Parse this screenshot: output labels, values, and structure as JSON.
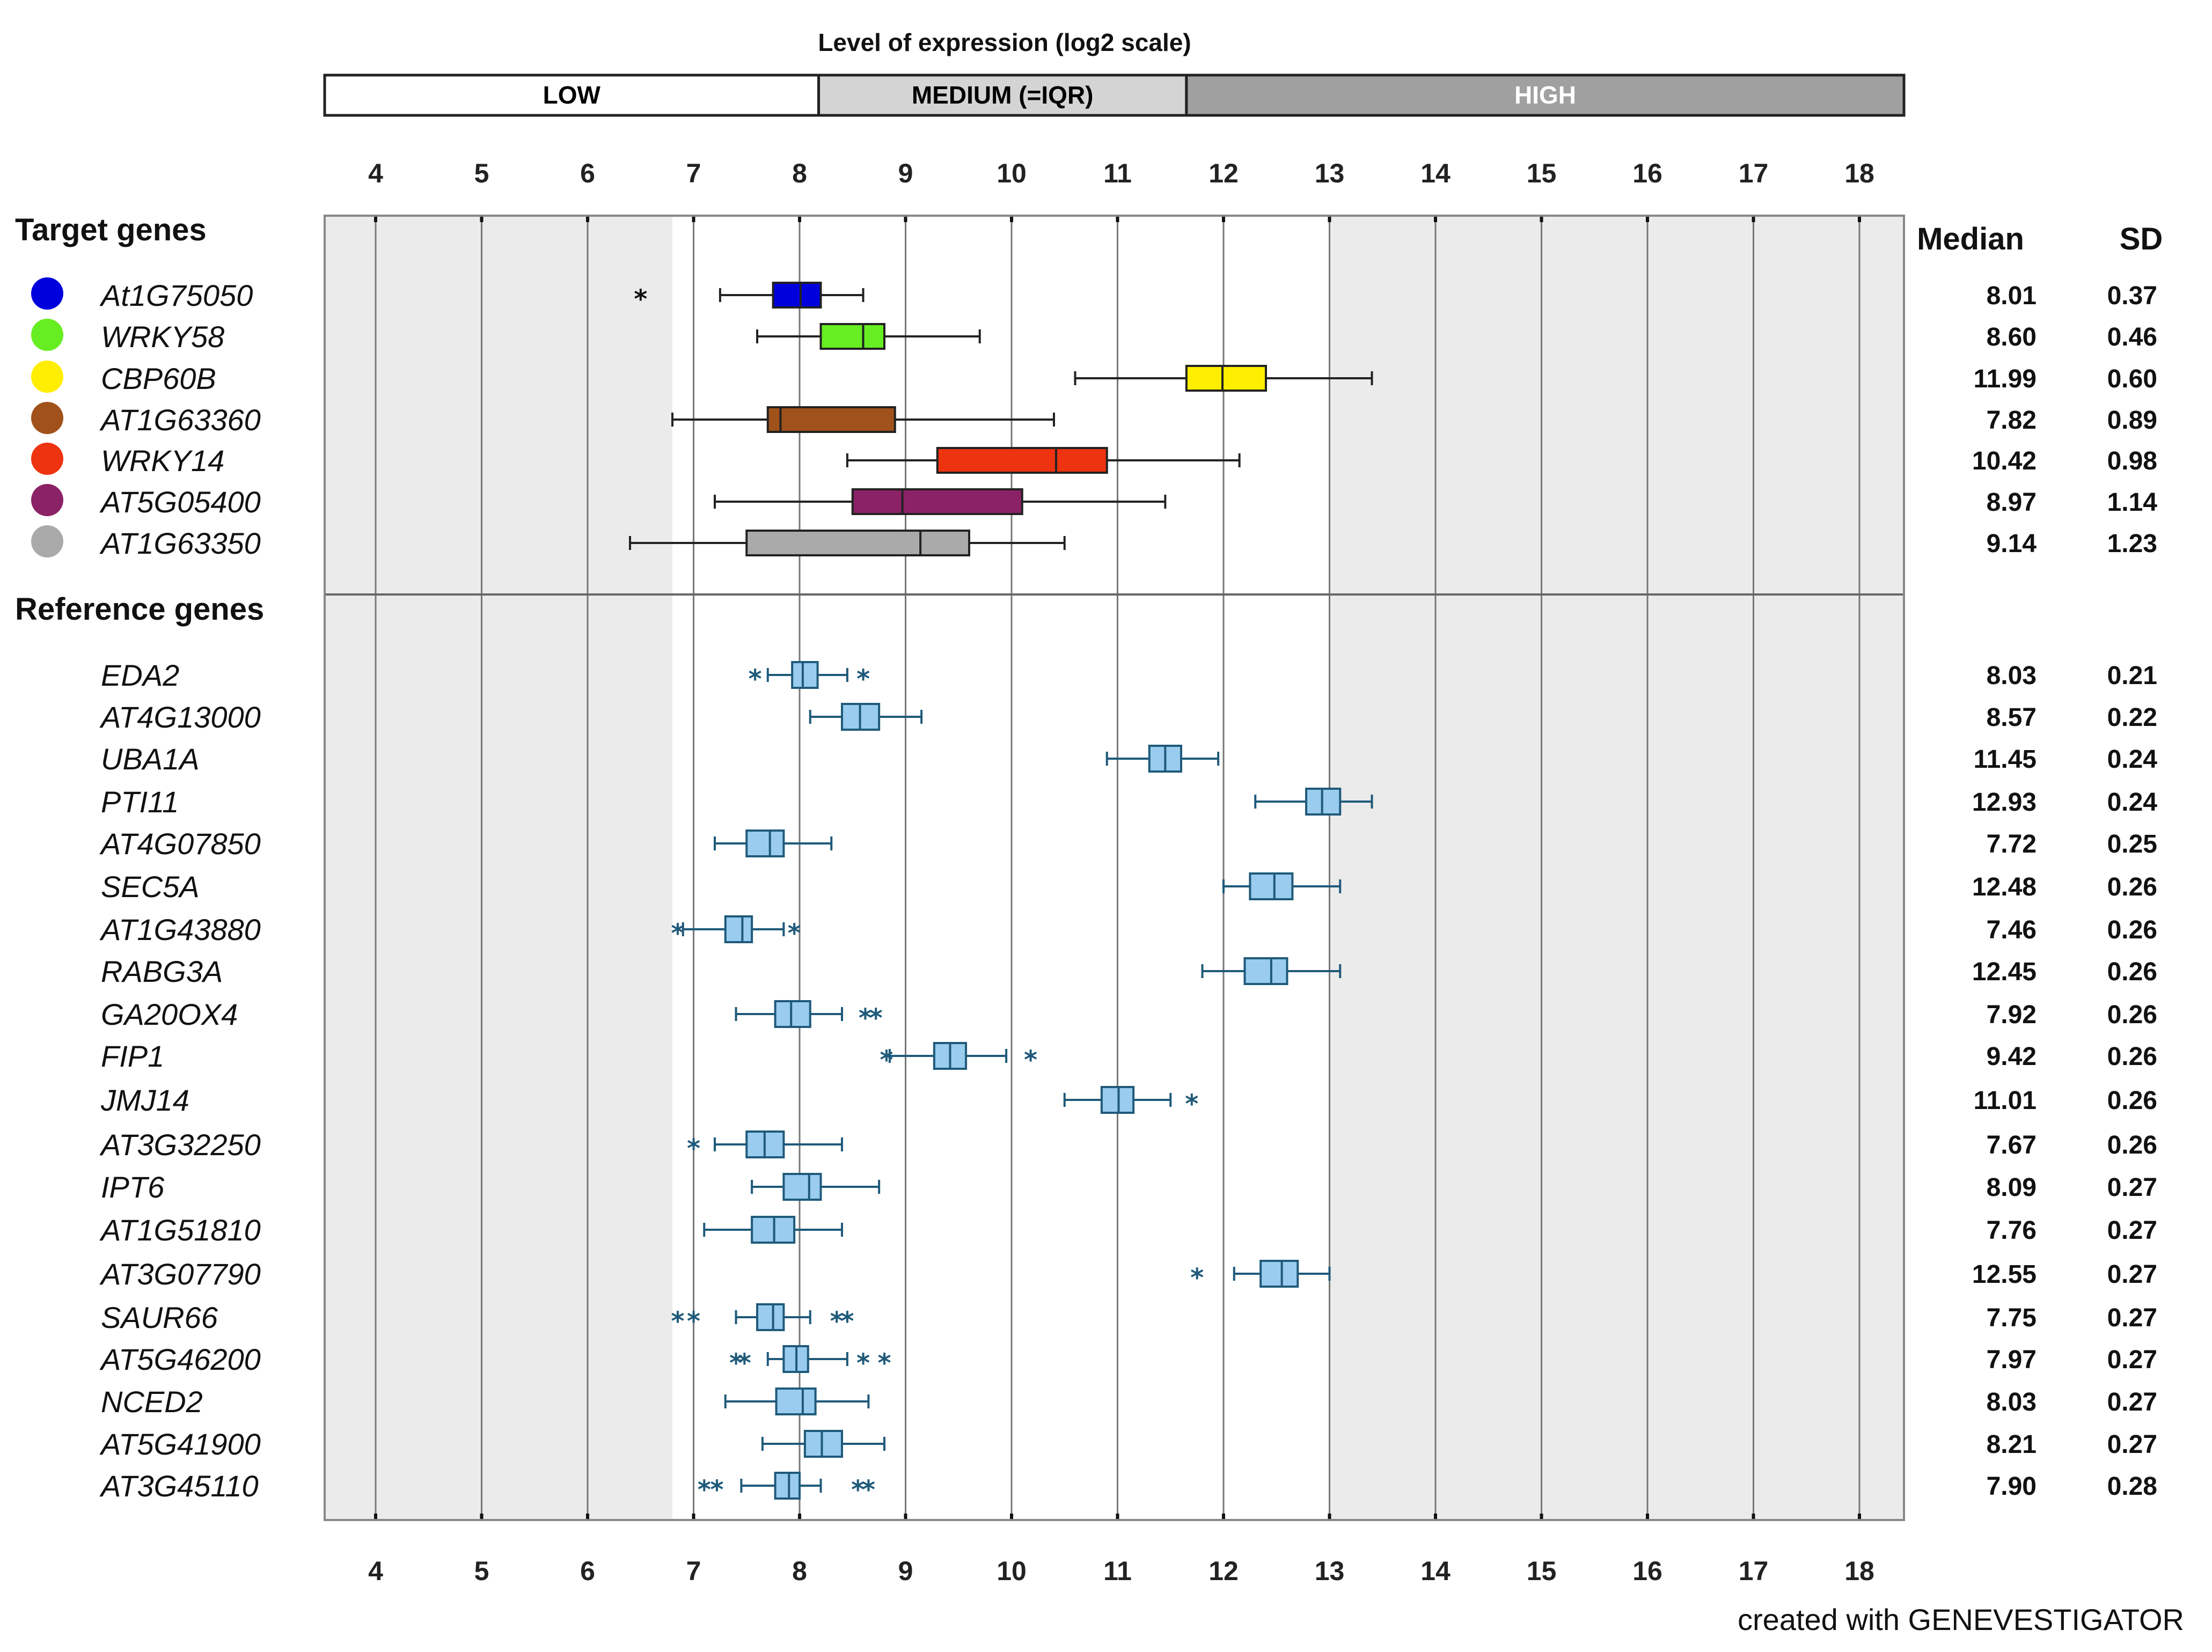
{
  "chart_data": {
    "type": "boxplot",
    "title": "Level of expression (log2 scale)",
    "xlim": [
      4,
      18
    ],
    "ticks": [
      4,
      5,
      6,
      7,
      8,
      9,
      10,
      11,
      12,
      13,
      14,
      15,
      16,
      17,
      18
    ],
    "tick_labels": [
      "4",
      "5",
      "6",
      "7",
      "8",
      "9",
      "10",
      "11",
      "12",
      "13",
      "14",
      "15",
      "16",
      "17",
      "18"
    ],
    "levels": [
      {
        "label": "LOW",
        "from": 3.5,
        "to": 8.18,
        "color": "#ffffff",
        "text_color": "#000000"
      },
      {
        "label": "MEDIUM (=IQR)",
        "from": 8.18,
        "to": 11.65,
        "color": "#d4d4d4",
        "text_color": "#000000"
      },
      {
        "label": "HIGH",
        "from": 11.65,
        "to": 18.5,
        "color": "#a0a0a0",
        "text_color": "#ffffff"
      }
    ],
    "shade_white_band": [
      6.8,
      13.0
    ],
    "column_headers": {
      "median": "Median",
      "sd": "SD"
    },
    "credit": "created with GENEVESTIGATOR",
    "groups": [
      {
        "label": "Target genes",
        "genes": [
          {
            "name": "At1G75050",
            "color": "#0000dd",
            "q1": 7.75,
            "median": 8.01,
            "q3": 8.2,
            "whisker_low": 7.25,
            "whisker_high": 8.6,
            "outliers": [
              6.5
            ],
            "median_label": "8.01",
            "sd_label": "0.37"
          },
          {
            "name": "WRKY58",
            "color": "#66ee22",
            "q1": 8.2,
            "median": 8.6,
            "q3": 8.8,
            "whisker_low": 7.6,
            "whisker_high": 9.7,
            "outliers": [],
            "median_label": "8.60",
            "sd_label": "0.46"
          },
          {
            "name": "CBP60B",
            "color": "#ffee00",
            "q1": 11.65,
            "median": 11.99,
            "q3": 12.4,
            "whisker_low": 10.6,
            "whisker_high": 13.4,
            "outliers": [],
            "median_label": "11.99",
            "sd_label": "0.60"
          },
          {
            "name": "AT1G63360",
            "color": "#a0521a",
            "q1": 7.7,
            "median": 7.82,
            "q3": 8.9,
            "whisker_low": 6.8,
            "whisker_high": 10.4,
            "outliers": [],
            "median_label": "7.82",
            "sd_label": "0.89"
          },
          {
            "name": "WRKY14",
            "color": "#ee3311",
            "q1": 9.3,
            "median": 10.42,
            "q3": 10.9,
            "whisker_low": 8.45,
            "whisker_high": 12.15,
            "outliers": [],
            "median_label": "10.42",
            "sd_label": "0.98"
          },
          {
            "name": "AT5G05400",
            "color": "#8b2266",
            "q1": 8.5,
            "median": 8.97,
            "q3": 10.1,
            "whisker_low": 7.2,
            "whisker_high": 11.45,
            "outliers": [],
            "median_label": "8.97",
            "sd_label": "1.14"
          },
          {
            "name": "AT1G63350",
            "color": "#aaaaaa",
            "q1": 7.5,
            "median": 9.14,
            "q3": 9.6,
            "whisker_low": 6.4,
            "whisker_high": 10.5,
            "outliers": [],
            "median_label": "9.14",
            "sd_label": "1.23"
          }
        ]
      },
      {
        "label": "Reference genes",
        "genes": [
          {
            "name": "EDA2",
            "color": "#99ccee",
            "q1": 7.93,
            "median": 8.03,
            "q3": 8.17,
            "whisker_low": 7.7,
            "whisker_high": 8.45,
            "outliers": [
              7.58,
              8.6
            ],
            "median_label": "8.03",
            "sd_label": "0.21"
          },
          {
            "name": "AT4G13000",
            "color": "#99ccee",
            "q1": 8.4,
            "median": 8.57,
            "q3": 8.75,
            "whisker_low": 8.1,
            "whisker_high": 9.15,
            "outliers": [],
            "median_label": "8.57",
            "sd_label": "0.22"
          },
          {
            "name": "UBA1A",
            "color": "#99ccee",
            "q1": 11.3,
            "median": 11.45,
            "q3": 11.6,
            "whisker_low": 10.9,
            "whisker_high": 11.95,
            "outliers": [],
            "median_label": "11.45",
            "sd_label": "0.24"
          },
          {
            "name": "PTI11",
            "color": "#99ccee",
            "q1": 12.78,
            "median": 12.93,
            "q3": 13.1,
            "whisker_low": 12.3,
            "whisker_high": 13.4,
            "outliers": [],
            "median_label": "12.93",
            "sd_label": "0.24"
          },
          {
            "name": "AT4G07850",
            "color": "#99ccee",
            "q1": 7.5,
            "median": 7.72,
            "q3": 7.85,
            "whisker_low": 7.2,
            "whisker_high": 8.3,
            "outliers": [],
            "median_label": "7.72",
            "sd_label": "0.25"
          },
          {
            "name": "SEC5A",
            "color": "#99ccee",
            "q1": 12.25,
            "median": 12.48,
            "q3": 12.65,
            "whisker_low": 12.0,
            "whisker_high": 13.1,
            "outliers": [],
            "median_label": "12.48",
            "sd_label": "0.26"
          },
          {
            "name": "AT1G43880",
            "color": "#99ccee",
            "q1": 7.3,
            "median": 7.46,
            "q3": 7.55,
            "whisker_low": 6.9,
            "whisker_high": 7.85,
            "outliers": [
              6.85,
              7.95
            ],
            "median_label": "7.46",
            "sd_label": "0.26"
          },
          {
            "name": "RABG3A",
            "color": "#99ccee",
            "q1": 12.2,
            "median": 12.45,
            "q3": 12.6,
            "whisker_low": 11.8,
            "whisker_high": 13.1,
            "outliers": [],
            "median_label": "12.45",
            "sd_label": "0.26"
          },
          {
            "name": "GA20OX4",
            "color": "#99ccee",
            "q1": 7.77,
            "median": 7.92,
            "q3": 8.1,
            "whisker_low": 7.4,
            "whisker_high": 8.4,
            "outliers": [
              8.62,
              8.72
            ],
            "median_label": "7.92",
            "sd_label": "0.26"
          },
          {
            "name": "FIP1",
            "color": "#99ccee",
            "q1": 9.27,
            "median": 9.42,
            "q3": 9.57,
            "whisker_low": 8.85,
            "whisker_high": 9.95,
            "outliers": [
              8.82,
              10.18
            ],
            "median_label": "9.42",
            "sd_label": "0.26"
          },
          {
            "name": "JMJ14",
            "color": "#99ccee",
            "q1": 10.85,
            "median": 11.01,
            "q3": 11.15,
            "whisker_low": 10.5,
            "whisker_high": 11.5,
            "outliers": [
              11.7
            ],
            "median_label": "11.01",
            "sd_label": "0.26"
          },
          {
            "name": "AT3G32250",
            "color": "#99ccee",
            "q1": 7.5,
            "median": 7.67,
            "q3": 7.85,
            "whisker_low": 7.2,
            "whisker_high": 8.4,
            "outliers": [
              7.0
            ],
            "median_label": "7.67",
            "sd_label": "0.26"
          },
          {
            "name": "IPT6",
            "color": "#99ccee",
            "q1": 7.85,
            "median": 8.09,
            "q3": 8.2,
            "whisker_low": 7.55,
            "whisker_high": 8.75,
            "outliers": [],
            "median_label": "8.09",
            "sd_label": "0.27"
          },
          {
            "name": "AT1G51810",
            "color": "#99ccee",
            "q1": 7.55,
            "median": 7.76,
            "q3": 7.95,
            "whisker_low": 7.1,
            "whisker_high": 8.4,
            "outliers": [],
            "median_label": "7.76",
            "sd_label": "0.27"
          },
          {
            "name": "AT3G07790",
            "color": "#99ccee",
            "q1": 12.35,
            "median": 12.55,
            "q3": 12.7,
            "whisker_low": 12.1,
            "whisker_high": 13.0,
            "outliers": [
              11.75
            ],
            "median_label": "12.55",
            "sd_label": "0.27"
          },
          {
            "name": "SAUR66",
            "color": "#99ccee",
            "q1": 7.6,
            "median": 7.75,
            "q3": 7.85,
            "whisker_low": 7.4,
            "whisker_high": 8.1,
            "outliers": [
              6.85,
              7.0,
              8.35,
              8.45
            ],
            "median_label": "7.75",
            "sd_label": "0.27"
          },
          {
            "name": "AT5G46200",
            "color": "#99ccee",
            "q1": 7.85,
            "median": 7.97,
            "q3": 8.08,
            "whisker_low": 7.7,
            "whisker_high": 8.45,
            "outliers": [
              7.4,
              7.48,
              8.6,
              8.8
            ],
            "median_label": "7.97",
            "sd_label": "0.27"
          },
          {
            "name": "NCED2",
            "color": "#99ccee",
            "q1": 7.78,
            "median": 8.03,
            "q3": 8.15,
            "whisker_low": 7.3,
            "whisker_high": 8.65,
            "outliers": [],
            "median_label": "8.03",
            "sd_label": "0.27"
          },
          {
            "name": "AT5G41900",
            "color": "#99ccee",
            "q1": 8.05,
            "median": 8.21,
            "q3": 8.4,
            "whisker_low": 7.65,
            "whisker_high": 8.8,
            "outliers": [],
            "median_label": "8.21",
            "sd_label": "0.27"
          },
          {
            "name": "AT3G45110",
            "color": "#99ccee",
            "q1": 7.77,
            "median": 7.9,
            "q3": 8.0,
            "whisker_low": 7.45,
            "whisker_high": 8.2,
            "outliers": [
              7.1,
              7.22,
              8.55,
              8.65
            ],
            "median_label": "7.90",
            "sd_label": "0.28"
          }
        ]
      }
    ]
  }
}
